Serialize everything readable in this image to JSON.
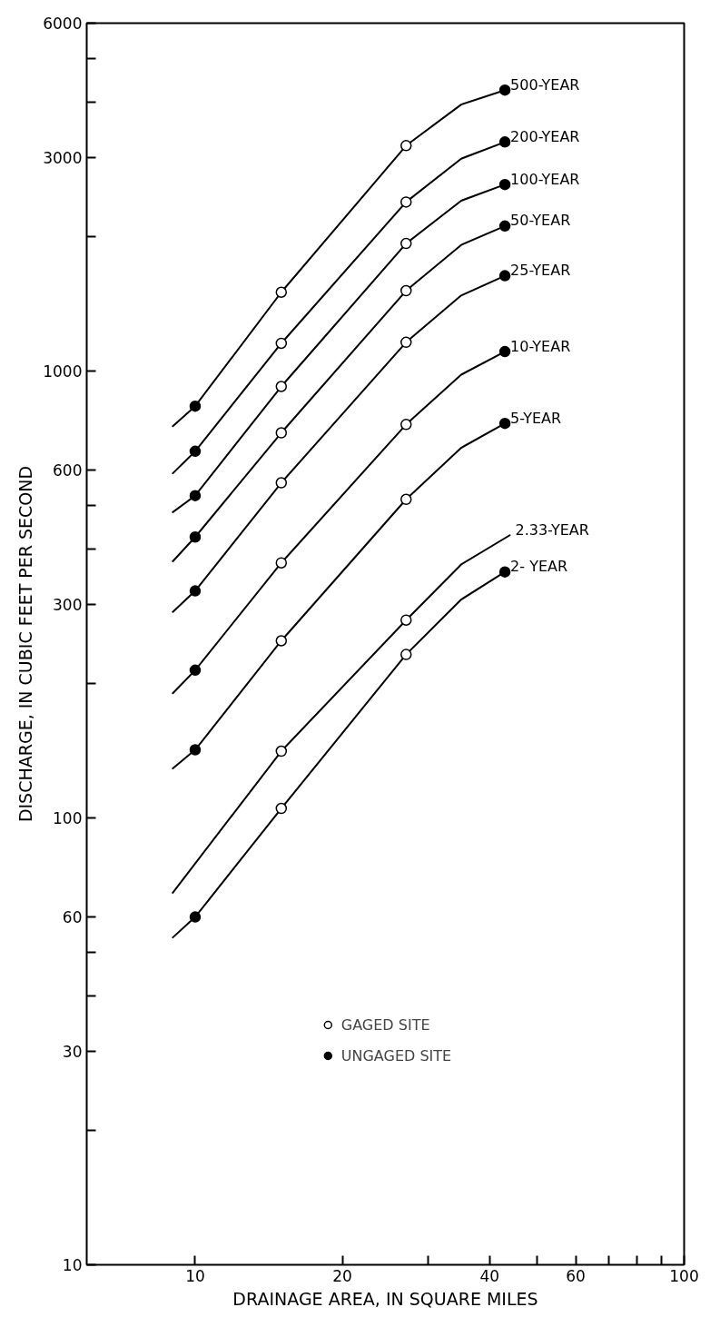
{
  "chart_data": {
    "type": "line",
    "xlabel": "DRAINAGE AREA, IN SQUARE MILES",
    "ylabel": "DISCHARGE, IN CUBIC FEET PER SECOND",
    "log": "xy",
    "xlim": [
      6,
      100
    ],
    "ylim": [
      10,
      6000
    ],
    "xticks": [
      10,
      20,
      {
        "value": 30,
        "label": null
      },
      40,
      {
        "value": 50,
        "label": null
      },
      60,
      {
        "value": 70,
        "label": null
      },
      {
        "value": 80,
        "label": null
      },
      {
        "value": 90,
        "label": null
      },
      100
    ],
    "yticks": [
      10,
      {
        "value": 20,
        "label": null
      },
      30,
      {
        "value": 40,
        "label": null
      },
      {
        "value": 50,
        "label": null
      },
      60,
      100,
      {
        "value": 200,
        "label": null
      },
      300,
      {
        "value": 400,
        "label": null
      },
      {
        "value": 500,
        "label": null
      },
      600,
      1000,
      {
        "value": 2000,
        "label": null
      },
      3000,
      {
        "value": 4000,
        "label": null
      },
      {
        "value": 5000,
        "label": null
      },
      6000
    ],
    "grid": false,
    "legend": "bottom",
    "marker": "none",
    "series": [
      {
        "name": "500-YEAR",
        "color": "#000000",
        "x": [
          9,
          10,
          15,
          27,
          35,
          43
        ],
        "values": [
          752,
          834,
          1500,
          3193,
          3945,
          4250
        ]
      },
      {
        "name": "200-YEAR",
        "color": "#000000",
        "x": [
          9,
          10,
          15,
          27,
          35,
          43
        ],
        "values": [
          590,
          661,
          1153,
          2388,
          2985,
          3253
        ]
      },
      {
        "name": "100-YEAR",
        "color": "#000000",
        "x": [
          9,
          10,
          15,
          27,
          35,
          43
        ],
        "values": [
          483,
          526,
          923,
          1928,
          2404,
          2613
        ]
      },
      {
        "name": "50-YEAR",
        "color": "#000000",
        "x": [
          9,
          10,
          15,
          27,
          35,
          43
        ],
        "values": [
          375,
          425,
          727,
          1512,
          1914,
          2110
        ]
      },
      {
        "name": "25-YEAR",
        "color": "#000000",
        "x": [
          9,
          10,
          15,
          27,
          35,
          43
        ],
        "values": [
          289,
          322,
          562,
          1159,
          1475,
          1633
        ]
      },
      {
        "name": "10-YEAR",
        "color": "#000000",
        "x": [
          9,
          10,
          15,
          27,
          35,
          43
        ],
        "values": [
          190,
          214,
          372,
          759,
          981,
          1105
        ]
      },
      {
        "name": "5-YEAR",
        "color": "#000000",
        "x": [
          9,
          10,
          15,
          27,
          35,
          43
        ],
        "values": [
          129,
          142,
          249,
          516,
          673,
          763
        ]
      },
      {
        "name": "2.33-YEAR",
        "color": "#000000",
        "x": [
          9,
          15,
          27,
          35,
          44
        ],
        "values": [
          68,
          141,
          277,
          369,
          429
        ]
      },
      {
        "name": "2- YEAR",
        "color": "#000000",
        "x": [
          9,
          10,
          15,
          27,
          35,
          43
        ],
        "values": [
          54,
          60,
          105,
          232,
          308,
          355
        ]
      },
      {
        "name": "GAGED SITE",
        "type": "scatter",
        "marker": "circle",
        "color": "#ffffff",
        "x": [
          15,
          27,
          15,
          27,
          15,
          27,
          15,
          27,
          15,
          27,
          15,
          27,
          15,
          27,
          15,
          27,
          15,
          27
        ],
        "values": [
          1500,
          3193,
          1153,
          2388,
          923,
          1928,
          727,
          1512,
          562,
          1159,
          372,
          759,
          249,
          516,
          141,
          277,
          105,
          232
        ]
      },
      {
        "name": "UNGAGED SITE",
        "type": "scatter",
        "marker": "circle",
        "color": "#000000",
        "x": [
          10,
          43,
          10,
          43,
          10,
          43,
          10,
          43,
          10,
          43,
          10,
          43,
          10,
          43,
          10,
          43
        ],
        "values": [
          834,
          4250,
          661,
          3253,
          526,
          2613,
          425,
          2110,
          322,
          1633,
          214,
          1105,
          142,
          763,
          60,
          355
        ]
      }
    ]
  }
}
